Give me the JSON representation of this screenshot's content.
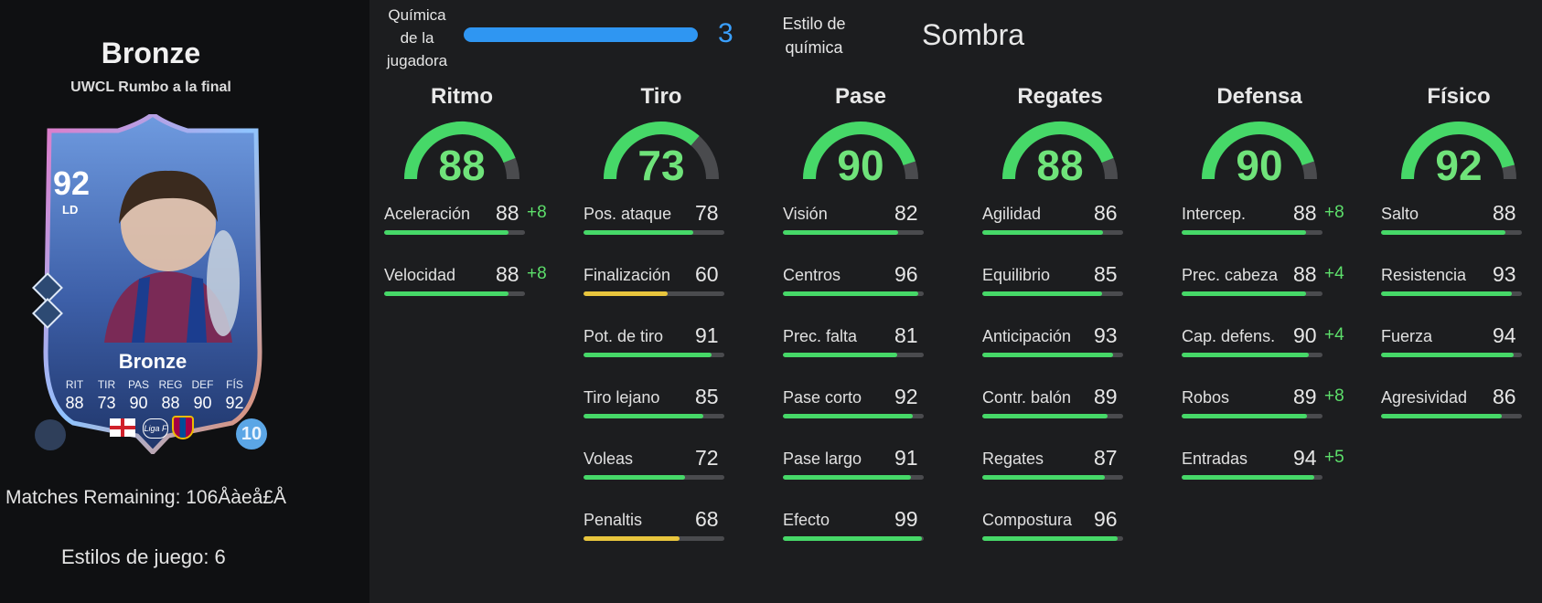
{
  "player": {
    "name": "Bronze",
    "promo": "UWCL Rumbo a la final",
    "matches_remaining": "Matches Remaining: 106Åàeå£Å",
    "playstyles": "Estilos de juego: 6"
  },
  "card": {
    "rating": "92",
    "position": "LD",
    "name": "Bronze",
    "level": "10",
    "stat_labels": [
      "RIT",
      "TIR",
      "PAS",
      "REG",
      "DEF",
      "FÍS"
    ],
    "stat_values": [
      "88",
      "73",
      "90",
      "88",
      "90",
      "92"
    ],
    "league_text": "Liga F",
    "accent_color": "#3a5fa8"
  },
  "chemistry": {
    "label": "Química de la jugadora",
    "value": "3",
    "style_label": "Estilo de química",
    "style_value": "Sombra",
    "bar_color": "#2f96f2"
  },
  "categories": [
    {
      "name": "Ritmo",
      "value": "88",
      "stats": [
        {
          "label": "Aceleración",
          "value": "88",
          "boost": "+8"
        },
        {
          "label": "Velocidad",
          "value": "88",
          "boost": "+8"
        }
      ]
    },
    {
      "name": "Tiro",
      "value": "73",
      "stats": [
        {
          "label": "Pos. ataque",
          "value": "78",
          "boost": ""
        },
        {
          "label": "Finalización",
          "value": "60",
          "boost": ""
        },
        {
          "label": "Pot. de tiro",
          "value": "91",
          "boost": ""
        },
        {
          "label": "Tiro lejano",
          "value": "85",
          "boost": ""
        },
        {
          "label": "Voleas",
          "value": "72",
          "boost": ""
        },
        {
          "label": "Penaltis",
          "value": "68",
          "boost": ""
        }
      ]
    },
    {
      "name": "Pase",
      "value": "90",
      "stats": [
        {
          "label": "Visión",
          "value": "82",
          "boost": ""
        },
        {
          "label": "Centros",
          "value": "96",
          "boost": ""
        },
        {
          "label": "Prec. falta",
          "value": "81",
          "boost": ""
        },
        {
          "label": "Pase corto",
          "value": "92",
          "boost": ""
        },
        {
          "label": "Pase largo",
          "value": "91",
          "boost": ""
        },
        {
          "label": "Efecto",
          "value": "99",
          "boost": ""
        }
      ]
    },
    {
      "name": "Regates",
      "value": "88",
      "stats": [
        {
          "label": "Agilidad",
          "value": "86",
          "boost": ""
        },
        {
          "label": "Equilibrio",
          "value": "85",
          "boost": ""
        },
        {
          "label": "Anticipación",
          "value": "93",
          "boost": ""
        },
        {
          "label": "Contr. balón",
          "value": "89",
          "boost": ""
        },
        {
          "label": "Regates",
          "value": "87",
          "boost": ""
        },
        {
          "label": "Compostura",
          "value": "96",
          "boost": ""
        }
      ]
    },
    {
      "name": "Defensa",
      "value": "90",
      "stats": [
        {
          "label": "Intercep.",
          "value": "88",
          "boost": "+8"
        },
        {
          "label": "Prec. cabeza",
          "value": "88",
          "boost": "+4"
        },
        {
          "label": "Cap. defens.",
          "value": "90",
          "boost": "+4"
        },
        {
          "label": "Robos",
          "value": "89",
          "boost": "+8"
        },
        {
          "label": "Entradas",
          "value": "94",
          "boost": "+5"
        }
      ]
    },
    {
      "name": "Físico",
      "value": "92",
      "stats": [
        {
          "label": "Salto",
          "value": "88",
          "boost": ""
        },
        {
          "label": "Resistencia",
          "value": "93",
          "boost": ""
        },
        {
          "label": "Fuerza",
          "value": "94",
          "boost": ""
        },
        {
          "label": "Agresividad",
          "value": "86",
          "boost": ""
        }
      ]
    }
  ],
  "colors": {
    "high": "#46d868",
    "mid": "#e8c53d",
    "track": "#4a4b4e",
    "boost": "#5ddf6b"
  }
}
